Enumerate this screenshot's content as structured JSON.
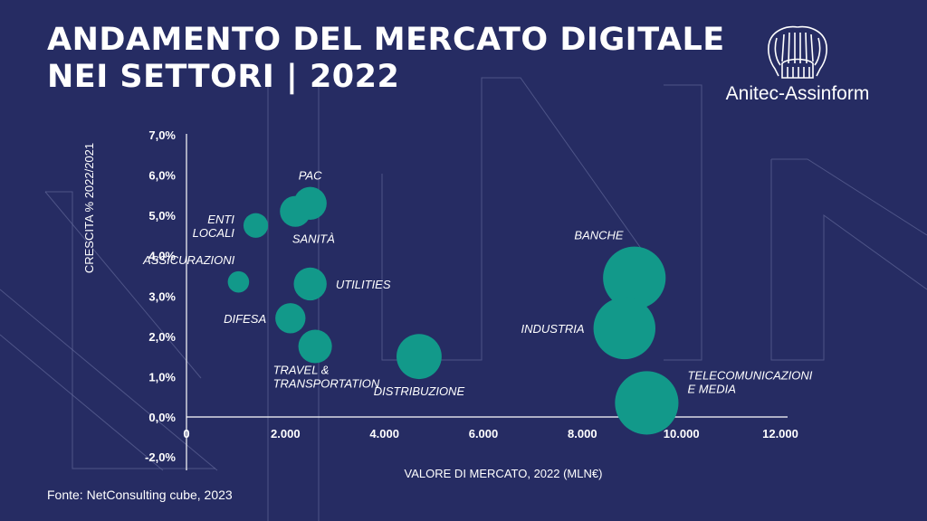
{
  "header": {
    "title_line1": "ANDAMENTO DEL MERCATO DIGITALE",
    "title_line2": "NEI SETTORI | 2022"
  },
  "logo": {
    "text": "Anitec-Assinform",
    "icon": "seal-icon"
  },
  "source": "Fonte: NetConsulting cube, 2023",
  "colors": {
    "background": "#262c63",
    "bubble": "#12998a",
    "text": "#ffffff",
    "outline": "#6f77a6"
  },
  "chart_data": {
    "type": "scatter",
    "variant": "bubble",
    "xlabel": "VALORE DI MERCATO, 2022 (MLN€)",
    "ylabel": "CRESCITA % 2022/2021",
    "xlim": [
      0,
      12000
    ],
    "ylim": [
      -2.0,
      7.0
    ],
    "x_ticks": [
      {
        "value": 0,
        "label": "0"
      },
      {
        "value": 2000,
        "label": "2.000"
      },
      {
        "value": 4000,
        "label": "4.000"
      },
      {
        "value": 6000,
        "label": "6.000"
      },
      {
        "value": 8000,
        "label": "8.000"
      },
      {
        "value": 10000,
        "label": "10.000"
      },
      {
        "value": 12000,
        "label": "12.000"
      }
    ],
    "y_ticks": [
      {
        "value": 7.0,
        "label": "7,0%"
      },
      {
        "value": 6.0,
        "label": "6,0%"
      },
      {
        "value": 5.0,
        "label": "5,0%"
      },
      {
        "value": 4.0,
        "label": "4,0%"
      },
      {
        "value": 3.0,
        "label": "3,0%"
      },
      {
        "value": 2.0,
        "label": "2,0%"
      },
      {
        "value": 1.0,
        "label": "1,0%"
      },
      {
        "value": 0.0,
        "label": "0,0%"
      },
      {
        "value": -2.0,
        "label": "-2,0%"
      }
    ],
    "grid": false,
    "legend": "none",
    "points": [
      {
        "label": "PAC",
        "label_pos": "above",
        "x": 2500,
        "y": 5.3,
        "size": 2500
      },
      {
        "label": "SANITÀ",
        "label_pos": "below-right",
        "x": 2200,
        "y": 5.1,
        "size": 2200
      },
      {
        "label": "ENTI\nLOCALI",
        "label_pos": "left",
        "x": 1400,
        "y": 4.75,
        "size": 1400
      },
      {
        "label": "ASSICURAZIONI",
        "label_pos": "above-left",
        "x": 1050,
        "y": 3.35,
        "size": 1050
      },
      {
        "label": "UTILITIES",
        "label_pos": "right",
        "x": 2500,
        "y": 3.3,
        "size": 2500
      },
      {
        "label": "DIFESA",
        "label_pos": "left",
        "x": 2100,
        "y": 2.45,
        "size": 2100
      },
      {
        "label": "TRAVEL &\nTRANSPORTATION",
        "label_pos": "below-left",
        "x": 2600,
        "y": 1.75,
        "size": 2600
      },
      {
        "label": "DISTRIBUZIONE",
        "label_pos": "below",
        "x": 4700,
        "y": 1.5,
        "size": 4700
      },
      {
        "label": "BANCHE",
        "label_pos": "above-left",
        "x": 9050,
        "y": 3.45,
        "size": 9050
      },
      {
        "label": "INDUSTRIA",
        "label_pos": "left",
        "x": 8850,
        "y": 2.2,
        "size": 8850
      },
      {
        "label": "TELECOMUNICAZIONI\nE MEDIA",
        "label_pos": "right",
        "x": 9300,
        "y": 0.35,
        "size": 9300
      }
    ]
  }
}
